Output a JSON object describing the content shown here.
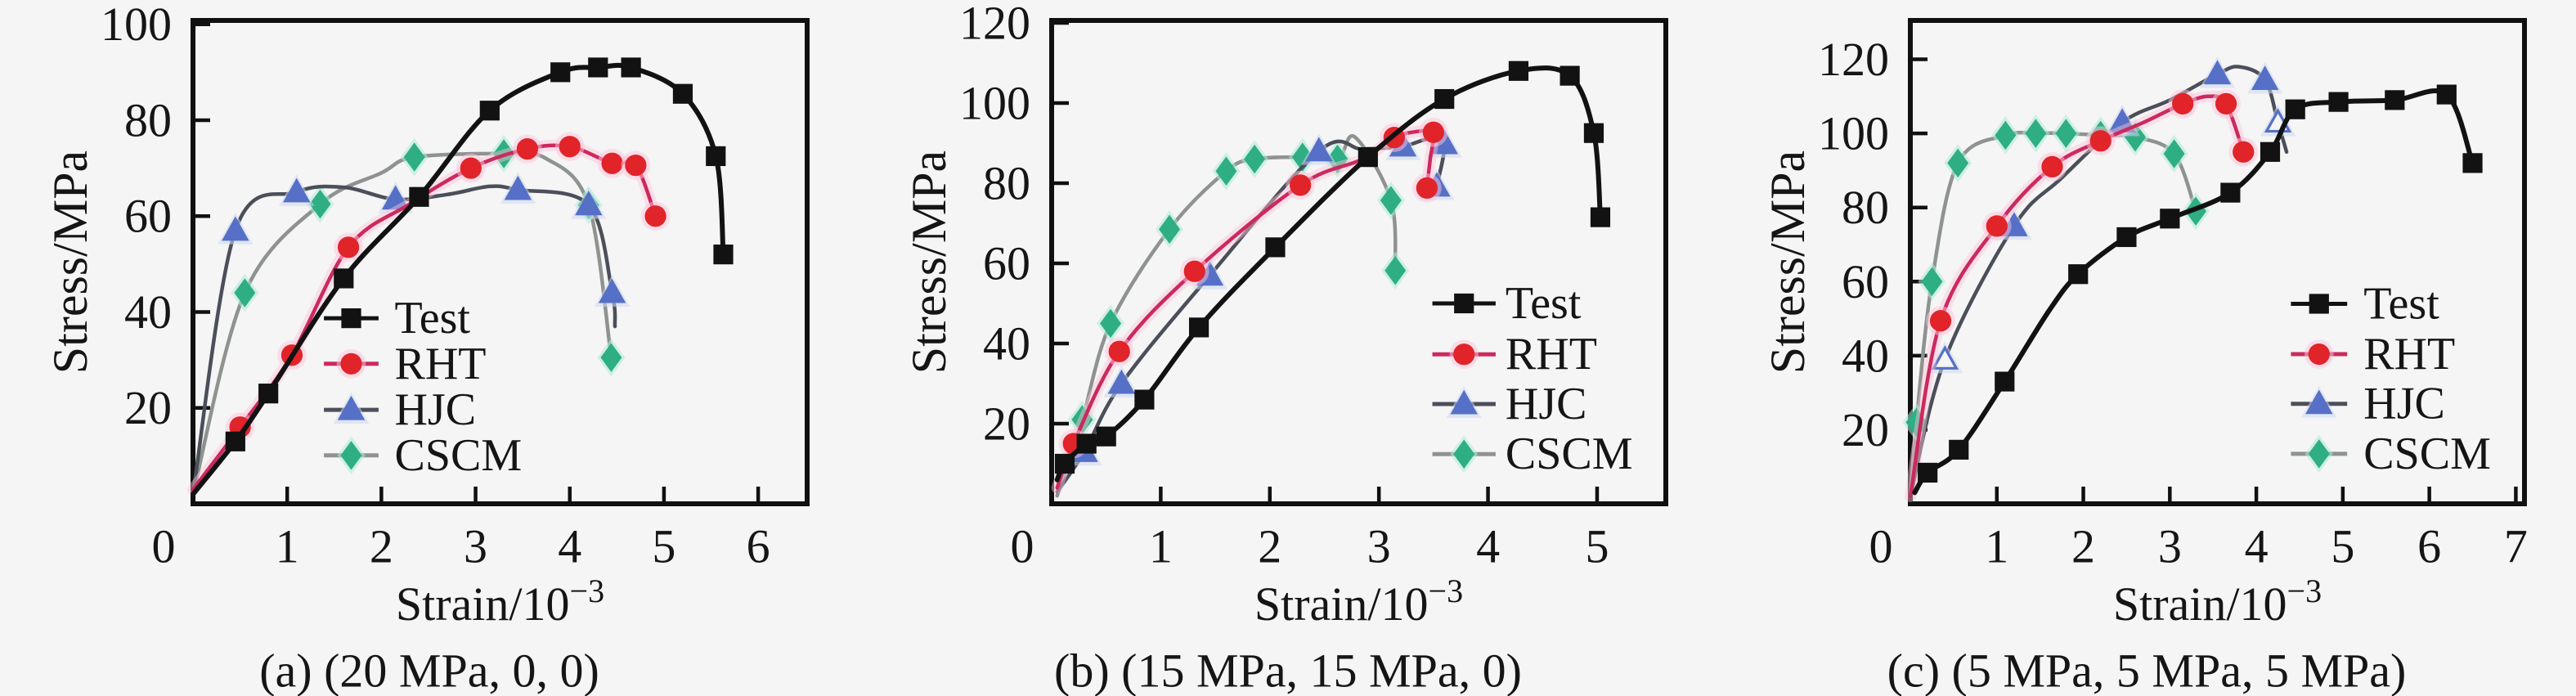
{
  "figure": {
    "background": "#f4f5f4",
    "text_color": "#151515",
    "axis_color": "#101010"
  },
  "chart_data": {
    "type": "line",
    "ylabel": "Stress/MPa",
    "xlabel_base": "Strain/10",
    "xlabel_sup": "−3",
    "legend_labels": [
      "Test",
      "RHT",
      "HJC",
      "CSCM"
    ],
    "draw_order": [
      "CSCM",
      "HJC",
      "RHT",
      "Test"
    ],
    "styles": {
      "Test": {
        "line_color": "#121212",
        "marker_color": "#121212",
        "marker": "square",
        "line_width": 6
      },
      "RHT": {
        "line_color": "#cb2a5c",
        "marker_color": "#e02429",
        "marker": "circle",
        "line_width": 4.5,
        "glow": "#ffc3dc"
      },
      "HJC": {
        "line_color": "#4b4f5a",
        "marker_color": "#5570c6",
        "marker": "triangle",
        "line_width": 4.5,
        "halo": "#cdd7f0"
      },
      "CSCM": {
        "line_color": "#8f9390",
        "marker_color": "#2fae84",
        "marker": "diamond",
        "line_width": 4.5,
        "halo": "#aeead9"
      }
    },
    "charts": [
      {
        "id": "a",
        "caption": "(a) (20 MPa, 0, 0)",
        "xlim": [
          0,
          6.52
        ],
        "ylim": [
          0,
          100.8
        ],
        "xticks": [
          0,
          1,
          2,
          3,
          4,
          5,
          6
        ],
        "yticks": [
          20,
          40,
          60,
          80,
          100
        ],
        "legend": {
          "line_x0": 1.39,
          "line_x1": 1.97,
          "text_x": 2.14,
          "rows_y": [
            38.7,
            29.2,
            19.6,
            10.1
          ]
        },
        "series": {
          "Test": [
            [
              0,
              2,
              0
            ],
            [
              0.45,
              13,
              1
            ],
            [
              0.8,
              23,
              1
            ],
            [
              1.6,
              47,
              1
            ],
            [
              2.4,
              64,
              1
            ],
            [
              3.15,
              82,
              1
            ],
            [
              3.9,
              90,
              1
            ],
            [
              4.3,
              91,
              1
            ],
            [
              4.65,
              91,
              1
            ],
            [
              5.2,
              85.5,
              1
            ],
            [
              5.55,
              72.5,
              1
            ],
            [
              5.63,
              52,
              1
            ]
          ],
          "RHT": [
            [
              0,
              3,
              0
            ],
            [
              0.5,
              16,
              1
            ],
            [
              1.05,
              31,
              1
            ],
            [
              1.65,
              53.5,
              1
            ],
            [
              2.3,
              62.5,
              0
            ],
            [
              2.95,
              70,
              1
            ],
            [
              3.55,
              74,
              1
            ],
            [
              4.0,
              74.5,
              1
            ],
            [
              4.45,
              71,
              1
            ],
            [
              4.7,
              70.6,
              1
            ],
            [
              4.91,
              60,
              1
            ]
          ],
          "HJC": [
            [
              0,
              2,
              0
            ],
            [
              0.45,
              57,
              1
            ],
            [
              1.1,
              65,
              1
            ],
            [
              1.6,
              66,
              0
            ],
            [
              2.15,
              63.5,
              1
            ],
            [
              2.7,
              64.5,
              0
            ],
            [
              3.15,
              66.2,
              0
            ],
            [
              3.45,
              65.5,
              1
            ],
            [
              4.2,
              62.3,
              1
            ],
            [
              4.45,
              44,
              1
            ],
            [
              4.48,
              37,
              0
            ]
          ],
          "CSCM": [
            [
              0,
              2,
              0
            ],
            [
              0.55,
              44,
              1
            ],
            [
              1.35,
              62.5,
              1
            ],
            [
              2.0,
              69,
              0
            ],
            [
              2.35,
              72.3,
              1
            ],
            [
              3.3,
              73,
              1
            ],
            [
              3.75,
              72,
              0
            ],
            [
              4.2,
              62.3,
              1
            ],
            [
              4.44,
              30.5,
              1
            ]
          ]
        }
      },
      {
        "id": "b",
        "caption": "(b) (15 MPa, 15 MPa, 0)",
        "xlim": [
          0,
          5.63
        ],
        "ylim": [
          0,
          120.6
        ],
        "xticks": [
          0,
          1,
          2,
          3,
          4,
          5
        ],
        "yticks": [
          20,
          40,
          60,
          80,
          100,
          120
        ],
        "legend": {
          "line_x0": 3.49,
          "line_x1": 4.07,
          "text_x": 4.16,
          "rows_y": [
            50,
            37.3,
            24.9,
            12.4
          ]
        },
        "series": {
          "Test": [
            [
              0.05,
              6,
              0
            ],
            [
              0.12,
              10,
              1
            ],
            [
              0.32,
              15,
              1
            ],
            [
              0.5,
              16.8,
              1
            ],
            [
              0.85,
              26,
              1
            ],
            [
              1.35,
              44,
              1
            ],
            [
              2.05,
              64,
              1
            ],
            [
              2.9,
              86.5,
              1
            ],
            [
              3.6,
              101,
              1
            ],
            [
              4.28,
              108,
              1
            ],
            [
              4.75,
              106.8,
              1
            ],
            [
              4.97,
              92.5,
              1
            ],
            [
              5.03,
              71.5,
              1
            ]
          ],
          "RHT": [
            [
              0.05,
              4,
              0
            ],
            [
              0.2,
              15,
              1
            ],
            [
              0.62,
              38,
              1
            ],
            [
              1.31,
              58,
              1
            ],
            [
              2.28,
              79.5,
              1
            ],
            [
              2.85,
              86,
              0
            ],
            [
              3.14,
              91.4,
              1
            ],
            [
              3.38,
              93,
              0
            ],
            [
              3.5,
              92.7,
              1
            ],
            [
              3.47,
              86,
              0
            ],
            [
              3.44,
              78.8,
              1
            ]
          ],
          "HJC": [
            [
              0.05,
              3,
              0
            ],
            [
              0.3,
              13,
              1
            ],
            [
              0.64,
              30,
              1
            ],
            [
              1.45,
              57,
              1
            ],
            [
              2.45,
              88,
              1
            ],
            [
              2.85,
              88.5,
              0
            ],
            [
              3.22,
              89.2,
              1
            ],
            [
              3.45,
              91,
              0
            ],
            [
              3.6,
              89.8,
              1
            ],
            [
              3.53,
              79.2,
              1
            ]
          ],
          "CSCM": [
            [
              0.05,
              2,
              0
            ],
            [
              0.28,
              21,
              1
            ],
            [
              0.54,
              45,
              1
            ],
            [
              1.08,
              68.5,
              1
            ],
            [
              1.6,
              83,
              1
            ],
            [
              1.86,
              86,
              1
            ],
            [
              2.3,
              86.5,
              1
            ],
            [
              2.62,
              86,
              1
            ],
            [
              2.78,
              91.5,
              0
            ],
            [
              3.11,
              75.7,
              1
            ],
            [
              3.15,
              58.2,
              1
            ]
          ]
        }
      },
      {
        "id": "c",
        "caption": "(c) (5 MPa, 5 MPa, 5 MPa)",
        "xlim": [
          0,
          7.1
        ],
        "ylim": [
          0,
          130.5
        ],
        "xticks": [
          0,
          1,
          2,
          3,
          4,
          5,
          6,
          7
        ],
        "yticks": [
          20,
          40,
          60,
          80,
          100,
          120
        ],
        "legend": {
          "line_x0": 4.4,
          "line_x1": 5.05,
          "text_x": 5.24,
          "rows_y": [
            54,
            40.4,
            27,
            13.5
          ]
        },
        "series": {
          "Test": [
            [
              0.05,
              3,
              0
            ],
            [
              0.2,
              8.4,
              1
            ],
            [
              0.56,
              14.6,
              1
            ],
            [
              1.09,
              33,
              1
            ],
            [
              1.6,
              52,
              0
            ],
            [
              1.94,
              62,
              1
            ],
            [
              2.5,
              72,
              1
            ],
            [
              3.0,
              77,
              1
            ],
            [
              3.7,
              84,
              1
            ],
            [
              4.16,
              95,
              1
            ],
            [
              4.45,
              106.5,
              1
            ],
            [
              4.95,
              108.5,
              1
            ],
            [
              5.6,
              109,
              1
            ],
            [
              6.2,
              110.5,
              1
            ],
            [
              6.5,
              92,
              1
            ]
          ],
          "RHT": [
            [
              0,
              2,
              0
            ],
            [
              0.35,
              49.4,
              1
            ],
            [
              1.0,
              75,
              1
            ],
            [
              1.64,
              91,
              1
            ],
            [
              2.2,
              98,
              1
            ],
            [
              2.7,
              103,
              0
            ],
            [
              3.15,
              108,
              1
            ],
            [
              3.45,
              110,
              0
            ],
            [
              3.65,
              108,
              1
            ],
            [
              3.85,
              95,
              1
            ]
          ],
          "HJC": [
            [
              0,
              2,
              0
            ],
            [
              0.4,
              39,
              2
            ],
            [
              1.2,
              75,
              1
            ],
            [
              1.75,
              88,
              0
            ],
            [
              2.45,
              103,
              1
            ],
            [
              3.0,
              109,
              0
            ],
            [
              3.55,
              116,
              1
            ],
            [
              3.8,
              118,
              0
            ],
            [
              4.1,
              114.5,
              1
            ],
            [
              4.25,
              103,
              2
            ],
            [
              4.35,
              95,
              0
            ]
          ],
          "CSCM": [
            [
              0,
              2,
              0
            ],
            [
              0.07,
              22,
              1
            ],
            [
              0.25,
              60,
              1
            ],
            [
              0.55,
              92,
              1
            ],
            [
              1.1,
              99.5,
              1
            ],
            [
              1.45,
              100,
              1
            ],
            [
              1.8,
              100,
              1
            ],
            [
              2.2,
              99.5,
              1
            ],
            [
              2.6,
              99,
              1
            ],
            [
              3.05,
              94.5,
              1
            ],
            [
              3.3,
              79,
              1
            ]
          ]
        }
      }
    ]
  }
}
